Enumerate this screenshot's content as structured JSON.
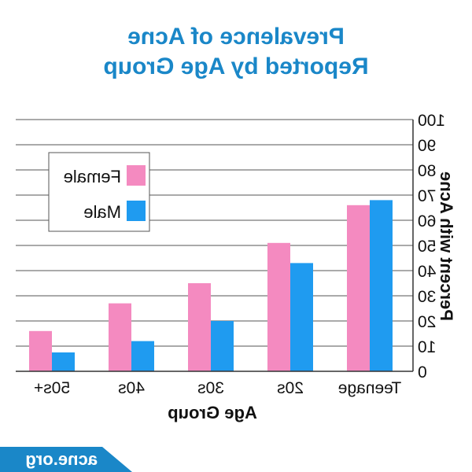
{
  "title_line1": "Prevalence of Acne",
  "title_line2": "Reported by Age Group",
  "logo_text": "acne.org",
  "colors": {
    "female": "#f48ac0",
    "male": "#1f9bf0",
    "title": "#1a87c8",
    "logo": "#1a87c8"
  },
  "chart_data": {
    "type": "bar",
    "title": "Prevalence of Acne Reported by Age Group",
    "xlabel": "Age Group",
    "ylabel": "Percent with Acne",
    "categories": [
      "Teenage",
      "20s",
      "30s",
      "40s",
      "50s+"
    ],
    "series": [
      {
        "name": "Male",
        "values": [
          68,
          43,
          20,
          12,
          7.5
        ]
      },
      {
        "name": "Female",
        "values": [
          66,
          51,
          35,
          27,
          16
        ]
      }
    ],
    "ylim": [
      0,
      100
    ],
    "yticks": [
      "0",
      "10",
      "20",
      "30",
      "40",
      "50",
      "60",
      "70",
      "80",
      "90",
      "100"
    ],
    "grid": true,
    "legend": [
      "Female",
      "Male"
    ],
    "legend_position": "top-left",
    "mirrored_image": true
  }
}
